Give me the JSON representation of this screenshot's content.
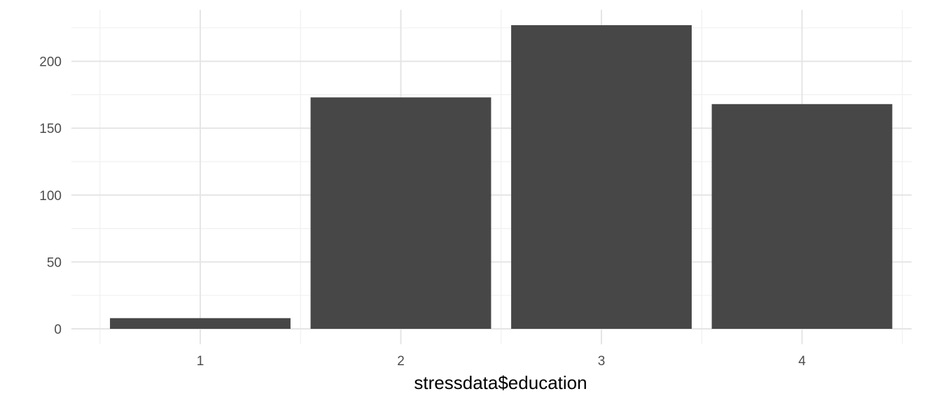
{
  "chart_data": {
    "type": "bar",
    "categories": [
      "1",
      "2",
      "3",
      "4"
    ],
    "values": [
      8,
      173,
      227,
      168
    ],
    "xlabel": "stressdata$education",
    "ylabel": "",
    "ylim": [
      0,
      230
    ],
    "yticks": [
      0,
      50,
      100,
      150,
      200
    ],
    "grid": true,
    "legend": "none",
    "colors": {
      "bar": "#474747",
      "grid_major": "#e5e5e5",
      "grid_minor": "#f0f0f0",
      "tick_label": "#4d4d4d",
      "axis_title": "#000000"
    }
  }
}
